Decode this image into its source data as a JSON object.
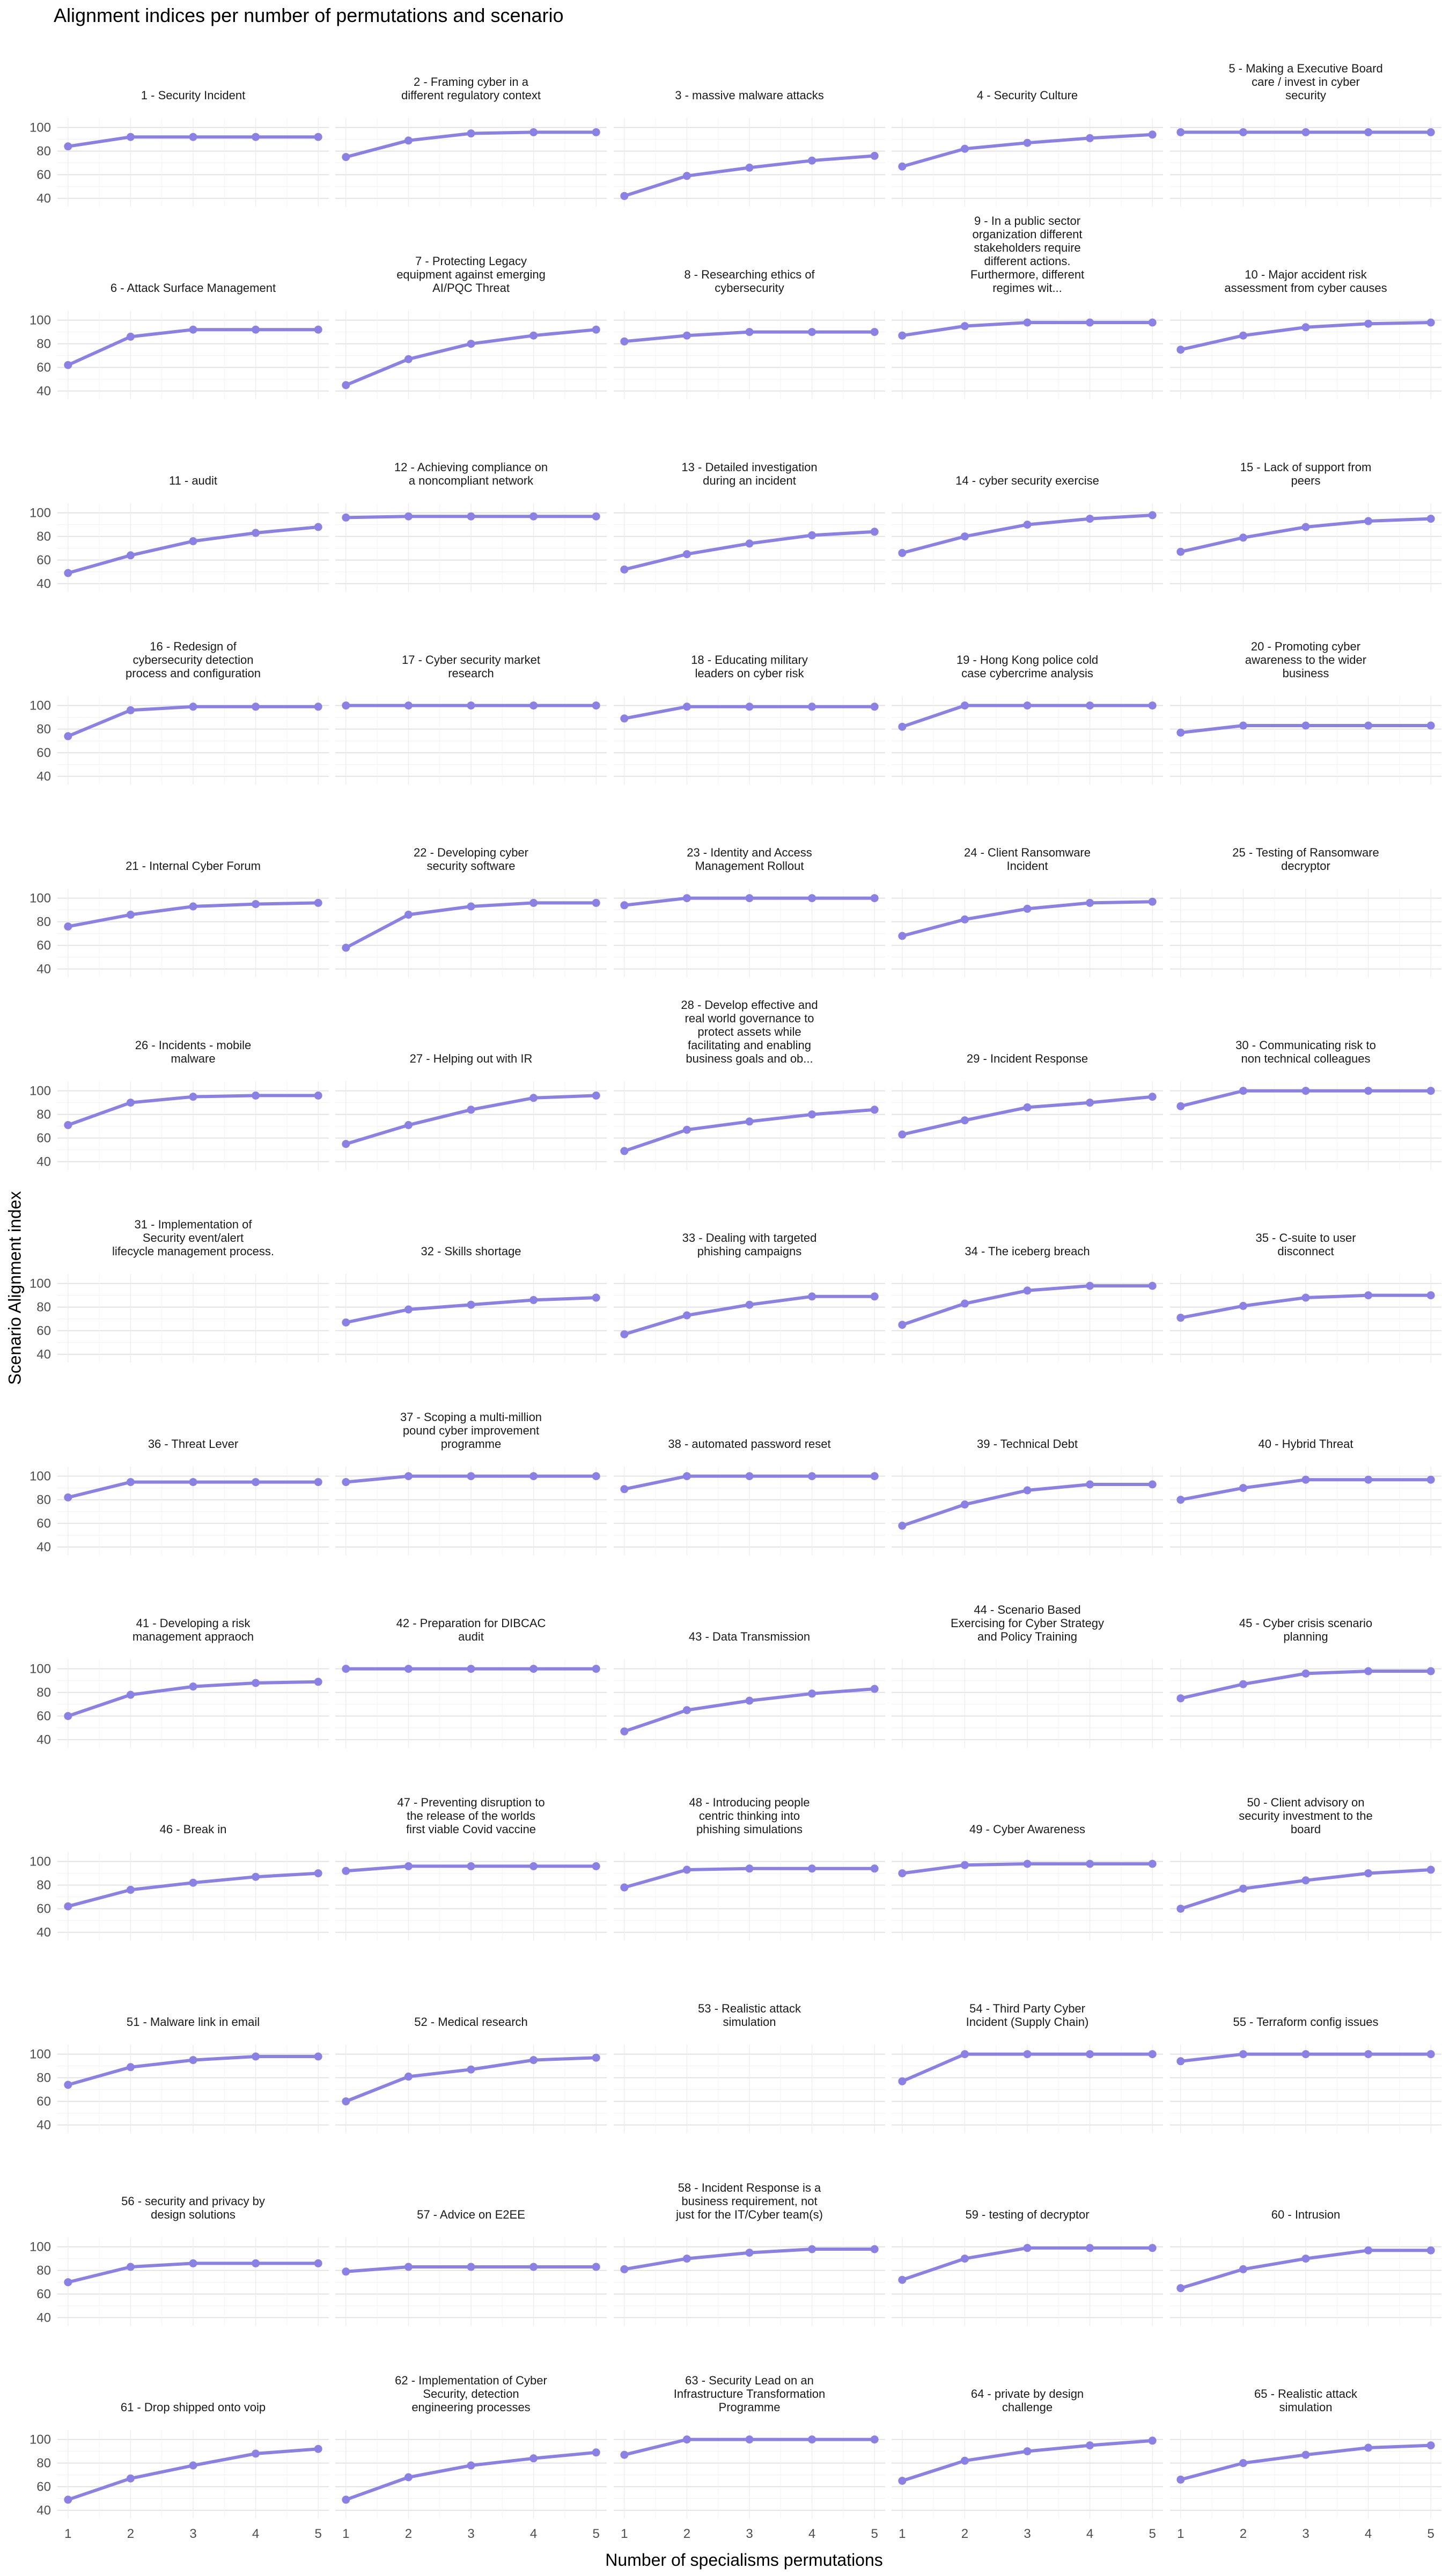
{
  "chart_data": {
    "type": "line",
    "title": "Alignment indices per number of permutations and scenario",
    "xlabel": "Number of specialisms permutations",
    "ylabel": "Scenario Alignment index",
    "x": [
      1,
      2,
      3,
      4,
      5
    ],
    "y_ticks": [
      40,
      60,
      80,
      100
    ],
    "ylim": [
      33,
      108
    ],
    "grid": true,
    "line_color": "#8b80e4",
    "panels": [
      {
        "title": [
          "1 - Security Incident"
        ],
        "values": [
          84,
          92,
          92,
          92,
          92
        ]
      },
      {
        "title": [
          "2 - Framing cyber in a",
          "different regulatory context"
        ],
        "values": [
          75,
          89,
          95,
          96,
          96
        ]
      },
      {
        "title": [
          "3 - massive malware attacks"
        ],
        "values": [
          42,
          59,
          66,
          72,
          76
        ]
      },
      {
        "title": [
          "4 - Security Culture"
        ],
        "values": [
          67,
          82,
          87,
          91,
          94
        ]
      },
      {
        "title": [
          "5 - Making a Executive Board",
          "care / invest in cyber",
          "security"
        ],
        "values": [
          96,
          96,
          96,
          96,
          96
        ]
      },
      {
        "title": [
          "6 - Attack Surface Management"
        ],
        "values": [
          62,
          86,
          92,
          92,
          92
        ]
      },
      {
        "title": [
          "7 - Protecting Legacy",
          "equipment against emerging",
          "AI/PQC Threat"
        ],
        "values": [
          45,
          67,
          80,
          87,
          92
        ]
      },
      {
        "title": [
          "8 - Researching ethics of",
          "cybersecurity"
        ],
        "values": [
          82,
          87,
          90,
          90,
          90
        ]
      },
      {
        "title": [
          "9 - In a public sector",
          "organization different",
          "stakeholders require",
          "different actions.",
          "Furthermore, different",
          "regimes wit..."
        ],
        "values": [
          87,
          95,
          98,
          98,
          98
        ]
      },
      {
        "title": [
          "10 - Major accident risk",
          "assessment from cyber causes"
        ],
        "values": [
          75,
          87,
          94,
          97,
          98
        ]
      },
      {
        "title": [
          "11 - audit"
        ],
        "values": [
          49,
          64,
          76,
          83,
          88
        ]
      },
      {
        "title": [
          "12 - Achieving compliance on",
          "a noncompliant network"
        ],
        "values": [
          96,
          97,
          97,
          97,
          97
        ]
      },
      {
        "title": [
          "13 - Detailed investigation",
          "during an incident"
        ],
        "values": [
          52,
          65,
          74,
          81,
          84
        ]
      },
      {
        "title": [
          "14 - cyber security exercise"
        ],
        "values": [
          66,
          80,
          90,
          95,
          98
        ]
      },
      {
        "title": [
          "15 - Lack of support from",
          "peers"
        ],
        "values": [
          67,
          79,
          88,
          93,
          95
        ]
      },
      {
        "title": [
          "16 - Redesign of",
          "cybersecurity detection",
          "process and configuration"
        ],
        "values": [
          74,
          96,
          99,
          99,
          99
        ]
      },
      {
        "title": [
          "17 - Cyber security market",
          "research"
        ],
        "values": [
          100,
          100,
          100,
          100,
          100
        ]
      },
      {
        "title": [
          "18 - Educating military",
          "leaders on cyber risk"
        ],
        "values": [
          89,
          99,
          99,
          99,
          99
        ]
      },
      {
        "title": [
          "19 - Hong Kong police cold",
          "case cybercrime analysis"
        ],
        "values": [
          82,
          100,
          100,
          100,
          100
        ]
      },
      {
        "title": [
          "20 - Promoting cyber",
          "awareness to the wider",
          "business"
        ],
        "values": [
          77,
          83,
          83,
          83,
          83
        ]
      },
      {
        "title": [
          "21 - Internal Cyber Forum"
        ],
        "values": [
          76,
          86,
          93,
          95,
          96
        ]
      },
      {
        "title": [
          "22 - Developing cyber",
          "security software"
        ],
        "values": [
          58,
          86,
          93,
          96,
          96
        ]
      },
      {
        "title": [
          "23 - Identity and Access",
          "Management Rollout"
        ],
        "values": [
          94,
          100,
          100,
          100,
          100
        ]
      },
      {
        "title": [
          "24 - Client Ransomware",
          "Incident"
        ],
        "values": [
          68,
          82,
          91,
          96,
          97
        ]
      },
      {
        "title": [
          "25 - Testing of Ransomware",
          "decryptor"
        ],
        "values": []
      },
      {
        "title": [
          "26 - Incidents - mobile",
          "malware"
        ],
        "values": [
          71,
          90,
          95,
          96,
          96
        ]
      },
      {
        "title": [
          "27 - Helping out with IR"
        ],
        "values": [
          55,
          71,
          84,
          94,
          96
        ]
      },
      {
        "title": [
          "28 - Develop effective and",
          "real world governance to",
          "protect assets while",
          "facilitating and enabling",
          "business goals and ob..."
        ],
        "values": [
          49,
          67,
          74,
          80,
          84
        ]
      },
      {
        "title": [
          "29 - Incident Response"
        ],
        "values": [
          63,
          75,
          86,
          90,
          95
        ]
      },
      {
        "title": [
          "30 - Communicating risk to",
          "non technical colleagues"
        ],
        "values": [
          87,
          100,
          100,
          100,
          100
        ]
      },
      {
        "title": [
          "31 - Implementation of",
          "Security event/alert",
          "lifecycle management process."
        ],
        "values": []
      },
      {
        "title": [
          "32 - Skills shortage"
        ],
        "values": [
          67,
          78,
          82,
          86,
          88
        ]
      },
      {
        "title": [
          "33 - Dealing with targeted",
          "phishing campaigns"
        ],
        "values": [
          57,
          73,
          82,
          89,
          89
        ]
      },
      {
        "title": [
          "34 - The iceberg breach"
        ],
        "values": [
          65,
          83,
          94,
          98,
          98
        ]
      },
      {
        "title": [
          "35 - C-suite to user",
          "disconnect"
        ],
        "values": [
          71,
          81,
          88,
          90,
          90
        ]
      },
      {
        "title": [
          "36 - Threat Lever"
        ],
        "values": [
          82,
          95,
          95,
          95,
          95
        ]
      },
      {
        "title": [
          "37 - Scoping a multi-million",
          "pound cyber improvement",
          "programme"
        ],
        "values": [
          95,
          100,
          100,
          100,
          100
        ]
      },
      {
        "title": [
          "38 - automated password reset"
        ],
        "values": [
          89,
          100,
          100,
          100,
          100
        ]
      },
      {
        "title": [
          "39 - Technical Debt"
        ],
        "values": [
          58,
          76,
          88,
          93,
          93
        ]
      },
      {
        "title": [
          "40 - Hybrid Threat"
        ],
        "values": [
          80,
          90,
          97,
          97,
          97
        ]
      },
      {
        "title": [
          "41 - Developing a risk",
          "management appraoch"
        ],
        "values": [
          60,
          78,
          85,
          88,
          89
        ]
      },
      {
        "title": [
          "42 - Preparation for DIBCAC",
          "audit"
        ],
        "values": [
          100,
          100,
          100,
          100,
          100
        ]
      },
      {
        "title": [
          "43 - Data Transmission"
        ],
        "values": [
          47,
          65,
          73,
          79,
          83
        ]
      },
      {
        "title": [
          "44 - Scenario Based",
          "Exercising for Cyber Strategy",
          "and Policy Training"
        ],
        "values": []
      },
      {
        "title": [
          "45 - Cyber crisis scenario",
          "planning"
        ],
        "values": [
          75,
          87,
          96,
          98,
          98
        ]
      },
      {
        "title": [
          "46 - Break in"
        ],
        "values": [
          62,
          76,
          82,
          87,
          90
        ]
      },
      {
        "title": [
          "47 - Preventing disruption to",
          "the release of the worlds",
          "first viable Covid vaccine"
        ],
        "values": [
          92,
          96,
          96,
          96,
          96
        ]
      },
      {
        "title": [
          "48 - Introducing people",
          "centric thinking into",
          "phishing simulations"
        ],
        "values": [
          78,
          93,
          94,
          94,
          94
        ]
      },
      {
        "title": [
          "49 - Cyber Awareness"
        ],
        "values": [
          90,
          97,
          98,
          98,
          98
        ]
      },
      {
        "title": [
          "50 - Client advisory on",
          "security investment to the",
          "board"
        ],
        "values": [
          60,
          77,
          84,
          90,
          93
        ]
      },
      {
        "title": [
          "51 - Malware link in email"
        ],
        "values": [
          74,
          89,
          95,
          98,
          98
        ]
      },
      {
        "title": [
          "52 - Medical research"
        ],
        "values": [
          60,
          81,
          87,
          95,
          97
        ]
      },
      {
        "title": [
          "53 - Realistic attack",
          "simulation"
        ],
        "values": []
      },
      {
        "title": [
          "54 - Third Party Cyber",
          "Incident (Supply Chain)"
        ],
        "values": [
          77,
          100,
          100,
          100,
          100
        ]
      },
      {
        "title": [
          "55 - Terraform config issues"
        ],
        "values": [
          94,
          100,
          100,
          100,
          100
        ]
      },
      {
        "title": [
          "56 - security and privacy by",
          "design solutions"
        ],
        "values": [
          70,
          83,
          86,
          86,
          86
        ]
      },
      {
        "title": [
          "57 - Advice on E2EE"
        ],
        "values": [
          79,
          83,
          83,
          83,
          83
        ]
      },
      {
        "title": [
          "58 - Incident Response is a",
          "business requirement, not",
          "just for the IT/Cyber team(s)"
        ],
        "values": [
          81,
          90,
          95,
          98,
          98
        ]
      },
      {
        "title": [
          "59 - testing of decryptor"
        ],
        "values": [
          72,
          90,
          99,
          99,
          99
        ]
      },
      {
        "title": [
          "60 - Intrusion"
        ],
        "values": [
          65,
          81,
          90,
          97,
          97
        ]
      },
      {
        "title": [
          "61 - Drop shipped onto voip"
        ],
        "values": [
          49,
          67,
          78,
          88,
          92
        ]
      },
      {
        "title": [
          "62 - Implementation of Cyber",
          "Security, detection",
          "engineering processes"
        ],
        "values": [
          49,
          68,
          78,
          84,
          89
        ]
      },
      {
        "title": [
          "63 - Security Lead on an",
          "Infrastructure Transformation",
          "Programme"
        ],
        "values": [
          87,
          100,
          100,
          100,
          100
        ]
      },
      {
        "title": [
          "64 - private by design",
          "challenge"
        ],
        "values": [
          65,
          82,
          90,
          95,
          99
        ]
      },
      {
        "title": [
          "65 - Realistic attack",
          "simulation"
        ],
        "values": [
          66,
          80,
          87,
          93,
          95
        ]
      }
    ]
  }
}
